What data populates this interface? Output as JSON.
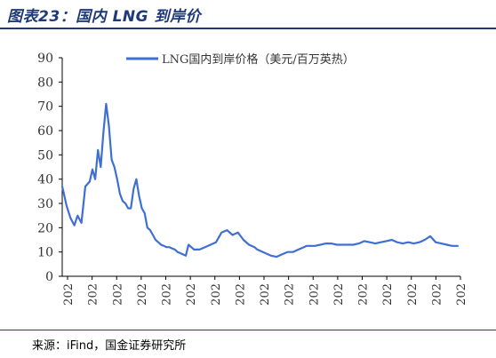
{
  "figure_title": "图表23：国内 LNG 到岸价",
  "source": "来源：iFind，国金证券研究所",
  "colors": {
    "accent": "#1f3a78",
    "series": "#3f6fd3",
    "axis": "#000000"
  },
  "chart_data": {
    "type": "line",
    "title": "",
    "xlabel": "",
    "ylabel": "",
    "ylim": [
      0,
      90
    ],
    "yticks": [
      0,
      10,
      20,
      30,
      40,
      50,
      60,
      70,
      80,
      90
    ],
    "xlim": [
      2018.0,
      2025.25
    ],
    "xtick_labels": [
      "202",
      "202",
      "202",
      "202",
      "202",
      "202",
      "202",
      "202",
      "202",
      "202",
      "202",
      "202",
      "202",
      "202",
      "202",
      "202",
      "202"
    ],
    "grid": false,
    "legend": "top-center",
    "series": [
      {
        "name": "LNG国内到岸价格（美元/百万英热）",
        "x": [
          2018.0,
          2018.03,
          2018.08,
          2018.15,
          2018.22,
          2018.28,
          2018.35,
          2018.42,
          2018.5,
          2018.55,
          2018.6,
          2018.65,
          2018.7,
          2018.75,
          2018.8,
          2018.85,
          2018.9,
          2018.95,
          2019.0,
          2019.05,
          2019.1,
          2019.15,
          2019.2,
          2019.25,
          2019.3,
          2019.35,
          2019.4,
          2019.45,
          2019.5,
          2019.55,
          2019.6,
          2019.65,
          2019.7,
          2019.75,
          2019.8,
          2019.85,
          2019.9,
          2019.95,
          2020.0,
          2020.05,
          2020.1,
          2020.15,
          2020.2,
          2020.25,
          2020.3,
          2020.35,
          2020.4,
          2020.5,
          2020.6,
          2020.7,
          2020.8,
          2020.9,
          2021.0,
          2021.1,
          2021.2,
          2021.3,
          2021.4,
          2021.5,
          2021.55,
          2021.6,
          2021.7,
          2021.8,
          2021.9,
          2022.0,
          2022.1,
          2022.2,
          2022.3,
          2022.4,
          2022.45,
          2022.5,
          2022.6,
          2022.7,
          2022.8,
          2022.9,
          2023.0,
          2023.1,
          2023.2,
          2023.3,
          2023.4,
          2023.5,
          2023.6,
          2023.7,
          2023.8,
          2023.9,
          2024.0,
          2024.1,
          2024.2,
          2024.3,
          2024.4,
          2024.5,
          2024.6,
          2024.7,
          2024.8,
          2024.9,
          2025.0,
          2025.1,
          2025.2
        ],
        "values": [
          37,
          34,
          29,
          24,
          21,
          25,
          22,
          37,
          39,
          44,
          40,
          52,
          45,
          59,
          71,
          62,
          48,
          45,
          40,
          34,
          31,
          30,
          28,
          28,
          36,
          40,
          33,
          28,
          26,
          20,
          19,
          17,
          15,
          14,
          13,
          12.5,
          12,
          12,
          11.5,
          11,
          10,
          9.5,
          9,
          8.5,
          13,
          12,
          11,
          11,
          12,
          13,
          14,
          18,
          19,
          17,
          18,
          15,
          13,
          12,
          11,
          10.5,
          9.5,
          8.5,
          8,
          9,
          10,
          10,
          11,
          12,
          12.5,
          12.5,
          12.5,
          13,
          13.5,
          13.5,
          13,
          13,
          13,
          13,
          13.5,
          14.5,
          14,
          13.5,
          14,
          14.5,
          15,
          14,
          13.5,
          14,
          13.5,
          14,
          15,
          16.5,
          14,
          13.5,
          13,
          12.5,
          12.5
        ]
      }
    ]
  }
}
